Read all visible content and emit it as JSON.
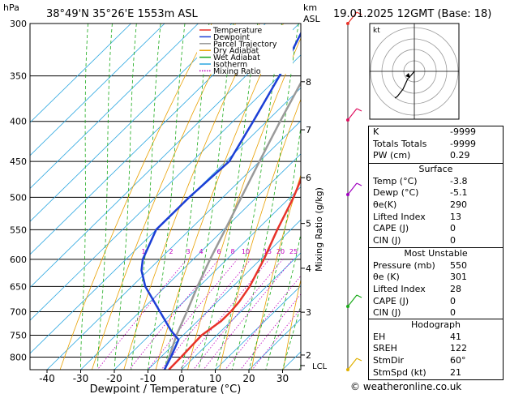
{
  "header": {
    "location": "38°49'N  35°26'E  1553m  ASL",
    "time": "19.01.2025  12GMT  (Base: 18)",
    "hpa_label": "hPa",
    "km_label": "km",
    "asl_label": "ASL"
  },
  "chart_data": {
    "type": "skew-t",
    "xlabel": "Dewpoint / Temperature (°C)",
    "mixing_label": "Mixing Ratio (g/kg)",
    "pressure_ticks": [
      300,
      350,
      400,
      450,
      500,
      550,
      600,
      650,
      700,
      750,
      800
    ],
    "temp_ticks": [
      -40,
      -30,
      -20,
      -10,
      0,
      10,
      20,
      30
    ],
    "km_ticks": [
      {
        "km": "8",
        "p": 356
      },
      {
        "km": "7",
        "p": 410
      },
      {
        "km": "6",
        "p": 472
      },
      {
        "km": "5",
        "p": 540
      },
      {
        "km": "4",
        "p": 616
      },
      {
        "km": "3",
        "p": 701
      },
      {
        "km": "2",
        "p": 795
      }
    ],
    "lcl_label": "LCL",
    "lcl_p": 820,
    "mixing_ratios": [
      "1",
      "2",
      "3",
      "4",
      "6",
      "8",
      "10",
      "15",
      "20",
      "25"
    ],
    "legend": [
      {
        "name": "Temperature",
        "color": "#e8332a",
        "style": "solid"
      },
      {
        "name": "Dewpoint",
        "color": "#1c3fd6",
        "style": "solid"
      },
      {
        "name": "Parcel Trajectory",
        "color": "#9a9a9a",
        "style": "solid"
      },
      {
        "name": "Dry Adiabat",
        "color": "#e8a000",
        "style": "solid"
      },
      {
        "name": "Wet Adiabat",
        "color": "#1aaa1a",
        "style": "solid"
      },
      {
        "name": "Isotherm",
        "color": "#2aa6e0",
        "style": "solid"
      },
      {
        "name": "Mixing Ratio",
        "color": "#c000c0",
        "style": "dotted"
      }
    ],
    "temperature": [
      [
        830,
        -3.8
      ],
      [
        800,
        -4
      ],
      [
        750,
        -4.5
      ],
      [
        720,
        -3
      ],
      [
        700,
        -3
      ],
      [
        680,
        -3.5
      ],
      [
        650,
        -5
      ],
      [
        600,
        -9
      ],
      [
        550,
        -14
      ],
      [
        500,
        -19
      ],
      [
        450,
        -25.5
      ],
      [
        400,
        -33
      ],
      [
        350,
        -42
      ],
      [
        300,
        -50
      ]
    ],
    "dewpoint": [
      [
        830,
        -5.1
      ],
      [
        800,
        -7
      ],
      [
        760,
        -10
      ],
      [
        740,
        -15
      ],
      [
        700,
        -24
      ],
      [
        650,
        -36
      ],
      [
        620,
        -42
      ],
      [
        600,
        -45
      ],
      [
        550,
        -50
      ],
      [
        500,
        -50
      ],
      [
        450,
        -49
      ],
      [
        400,
        -54
      ],
      [
        350,
        -60
      ],
      [
        300,
        -68
      ]
    ],
    "parcel": [
      [
        830,
        -5
      ],
      [
        800,
        -7.5
      ],
      [
        750,
        -12
      ],
      [
        700,
        -16
      ],
      [
        650,
        -20.5
      ],
      [
        600,
        -25
      ],
      [
        550,
        -29.5
      ],
      [
        500,
        -34.5
      ],
      [
        450,
        -40
      ],
      [
        400,
        -46
      ],
      [
        350,
        -52.5
      ],
      [
        300,
        -60
      ]
    ]
  },
  "hodograph": {
    "label": "kt"
  },
  "indices": {
    "basic": [
      {
        "label": "K",
        "value": "-9999"
      },
      {
        "label": "Totals Totals",
        "value": "-9999"
      },
      {
        "label": "PW (cm)",
        "value": "0.29"
      }
    ],
    "surface": {
      "title": "Surface",
      "rows": [
        {
          "label": "Temp (°C)",
          "value": "-3.8"
        },
        {
          "label": "Dewp (°C)",
          "value": "-5.1"
        },
        {
          "label": "θe(K)",
          "value": "290"
        },
        {
          "label": "Lifted Index",
          "value": "13"
        },
        {
          "label": "CAPE (J)",
          "value": "0"
        },
        {
          "label": "CIN (J)",
          "value": "0"
        }
      ]
    },
    "most_unstable": {
      "title": "Most Unstable",
      "rows": [
        {
          "label": "Pressure (mb)",
          "value": "550"
        },
        {
          "label": "θe (K)",
          "value": "301"
        },
        {
          "label": "Lifted Index",
          "value": "28"
        },
        {
          "label": "CAPE (J)",
          "value": "0"
        },
        {
          "label": "CIN (J)",
          "value": "0"
        }
      ]
    },
    "hodograph": {
      "title": "Hodograph",
      "rows": [
        {
          "label": "EH",
          "value": "41"
        },
        {
          "label": "SREH",
          "value": "122"
        },
        {
          "label": "StmDir",
          "value": "60°"
        },
        {
          "label": "StmSpd (kt)",
          "value": "21"
        }
      ]
    }
  },
  "footer": {
    "copyright": "© weatheronline.co.uk"
  }
}
